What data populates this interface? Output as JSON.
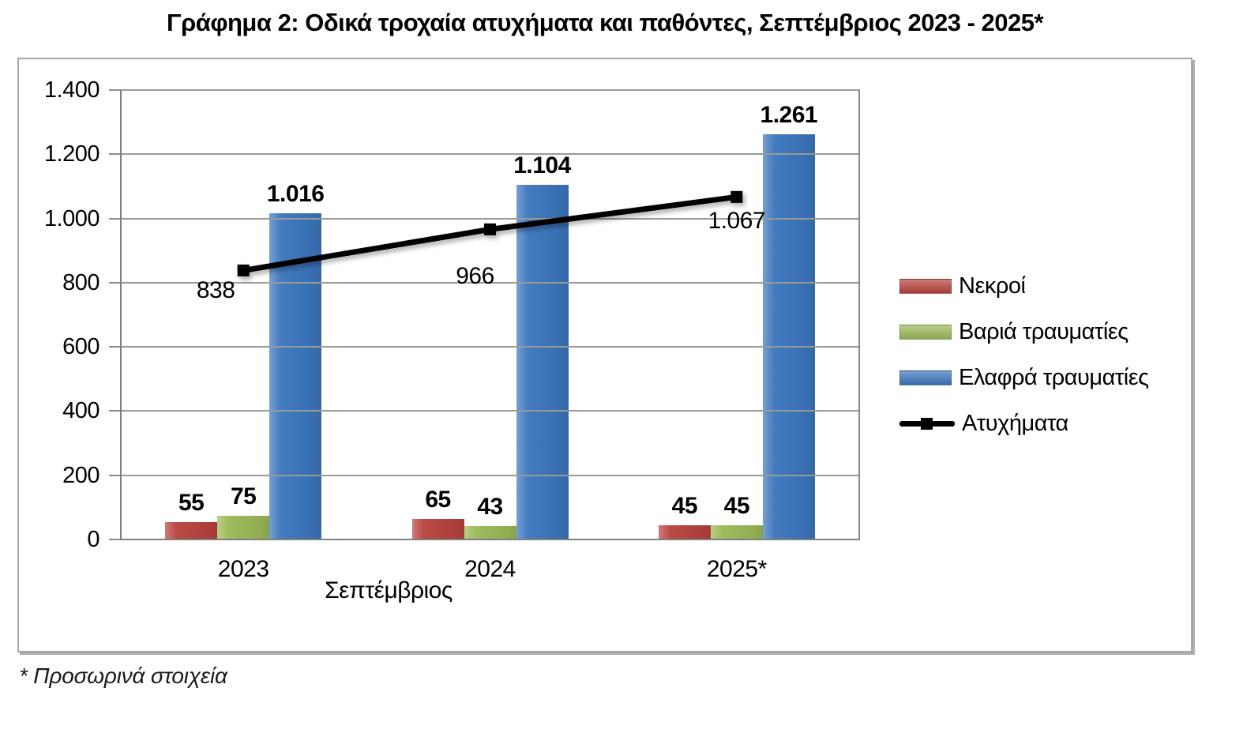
{
  "page": {
    "title": "Γράφημα 2: Οδικά τροχαία ατυχήματα και παθόντες, Σεπτέμβριος 2023 - 2025*",
    "footnote": "* Προσωρινά στοιχεία"
  },
  "colors": {
    "deaths": "#b8433f",
    "serious_injuries": "#9cb957",
    "light_injuries": "#3c76bd",
    "accidents": "#000000",
    "gridline": "#999999",
    "axis": "#7f7f7f",
    "chart_border": "#a6a6a6"
  },
  "chart_data": {
    "type": "bar+line",
    "title": "Γράφημα 2: Οδικά τροχαία ατυχήματα και παθόντες, Σεπτέμβριος 2023 - 2025*",
    "categories": [
      "2023",
      "2024",
      "2025*"
    ],
    "xlabel": "Σεπτέμβριος",
    "ylabel": "",
    "ylim": [
      0,
      1400
    ],
    "grid": true,
    "legend_position": "right",
    "yticks": [
      {
        "v": 0,
        "label": "0"
      },
      {
        "v": 200,
        "label": "200"
      },
      {
        "v": 400,
        "label": "400"
      },
      {
        "v": 600,
        "label": "600"
      },
      {
        "v": 800,
        "label": "800"
      },
      {
        "v": 1000,
        "label": "1.000"
      },
      {
        "v": 1200,
        "label": "1.200"
      },
      {
        "v": 1400,
        "label": "1.400"
      }
    ],
    "series": [
      {
        "name": "Νεκροί",
        "type": "bar",
        "color_key": "deaths",
        "values": [
          55,
          65,
          45
        ],
        "labels": [
          "55",
          "65",
          "45"
        ]
      },
      {
        "name": "Βαριά τραυματίες",
        "type": "bar",
        "color_key": "serious_injuries",
        "values": [
          75,
          43,
          45
        ],
        "labels": [
          "75",
          "43",
          "45"
        ]
      },
      {
        "name": "Ελαφρά τραυματίες",
        "type": "bar",
        "color_key": "light_injuries",
        "values": [
          1016,
          1104,
          1261
        ],
        "labels": [
          "1.016",
          "1.104",
          "1.261"
        ]
      },
      {
        "name": "Ατυχήματα",
        "type": "line",
        "color_key": "accidents",
        "values": [
          838,
          966,
          1067
        ],
        "labels": [
          "838",
          "966",
          "1.067"
        ]
      }
    ]
  }
}
